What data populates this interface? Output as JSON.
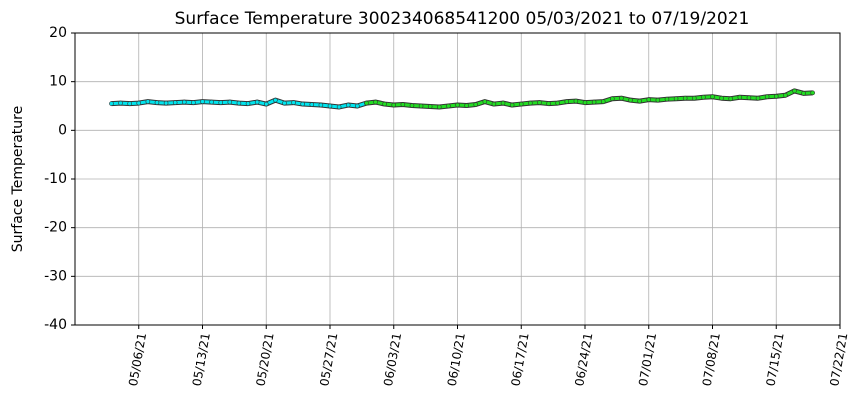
{
  "chart_data": {
    "type": "line",
    "title": "Surface Temperature 300234068541200  05/03/2021 to 07/19/2021",
    "y_label": "Surface Temperature",
    "x": [
      "2021-05-03",
      "2021-05-04",
      "2021-05-05",
      "2021-05-06",
      "2021-05-07",
      "2021-05-08",
      "2021-05-09",
      "2021-05-10",
      "2021-05-11",
      "2021-05-12",
      "2021-05-13",
      "2021-05-14",
      "2021-05-15",
      "2021-05-16",
      "2021-05-17",
      "2021-05-18",
      "2021-05-19",
      "2021-05-20",
      "2021-05-21",
      "2021-05-22",
      "2021-05-23",
      "2021-05-24",
      "2021-05-25",
      "2021-05-26",
      "2021-05-27",
      "2021-05-28",
      "2021-05-29",
      "2021-05-30",
      "2021-05-31",
      "2021-06-01",
      "2021-06-02",
      "2021-06-03",
      "2021-06-04",
      "2021-06-05",
      "2021-06-06",
      "2021-06-07",
      "2021-06-08",
      "2021-06-09",
      "2021-06-10",
      "2021-06-11",
      "2021-06-12",
      "2021-06-13",
      "2021-06-14",
      "2021-06-15",
      "2021-06-16",
      "2021-06-17",
      "2021-06-18",
      "2021-06-19",
      "2021-06-20",
      "2021-06-21",
      "2021-06-22",
      "2021-06-23",
      "2021-06-24",
      "2021-06-25",
      "2021-06-26",
      "2021-06-27",
      "2021-06-28",
      "2021-06-29",
      "2021-06-30",
      "2021-07-01",
      "2021-07-02",
      "2021-07-03",
      "2021-07-04",
      "2021-07-05",
      "2021-07-06",
      "2021-07-07",
      "2021-07-08",
      "2021-07-09",
      "2021-07-10",
      "2021-07-11",
      "2021-07-12",
      "2021-07-13",
      "2021-07-14",
      "2021-07-15",
      "2021-07-16",
      "2021-07-17",
      "2021-07-18",
      "2021-07-19"
    ],
    "series": [
      {
        "color": "#00e5ee",
        "values": [
          5.5,
          5.6,
          5.5,
          5.6,
          5.9,
          5.7,
          5.6,
          5.7,
          5.8,
          5.7,
          5.9,
          5.8,
          5.7,
          5.8,
          5.6,
          5.5,
          5.8,
          5.4,
          6.2,
          5.6,
          5.7,
          5.4,
          5.3,
          5.2,
          5.0,
          4.8,
          5.2,
          5.0,
          5.6,
          null,
          null,
          null,
          null,
          null,
          null,
          null,
          null,
          null,
          null,
          null,
          null,
          null,
          null,
          null,
          null,
          null,
          null,
          null,
          null,
          null,
          null,
          null,
          null,
          null,
          null,
          null,
          null,
          null,
          null,
          null,
          null,
          null,
          null,
          null,
          null,
          null,
          null,
          null,
          null,
          null,
          null,
          null,
          null,
          null,
          null,
          null,
          null,
          null
        ]
      },
      {
        "color": "#22dd22",
        "values": [
          null,
          null,
          null,
          null,
          null,
          null,
          null,
          null,
          null,
          null,
          null,
          null,
          null,
          null,
          null,
          null,
          null,
          null,
          null,
          null,
          null,
          null,
          null,
          null,
          null,
          null,
          null,
          null,
          5.6,
          5.8,
          5.4,
          5.2,
          5.3,
          5.1,
          5.0,
          4.9,
          4.8,
          5.0,
          5.2,
          5.1,
          5.3,
          5.9,
          5.4,
          5.6,
          5.2,
          5.4,
          5.6,
          5.7,
          5.5,
          5.6,
          5.9,
          6.0,
          5.7,
          5.8,
          5.9,
          6.5,
          6.6,
          6.2,
          6.0,
          6.3,
          6.2,
          6.4,
          6.5,
          6.6,
          6.6,
          6.8,
          6.9,
          6.6,
          6.5,
          6.8,
          6.7,
          6.6,
          6.9,
          7.0,
          7.2,
          8.1,
          7.6,
          7.7
        ]
      }
    ],
    "xlim": [
      "2021-04-29",
      "2021-07-22"
    ],
    "xticks": [
      {
        "value": "2021-05-06",
        "label": "05/06/21"
      },
      {
        "value": "2021-05-13",
        "label": "05/13/21"
      },
      {
        "value": "2021-05-20",
        "label": "05/20/21"
      },
      {
        "value": "2021-05-27",
        "label": "05/27/21"
      },
      {
        "value": "2021-06-03",
        "label": "06/03/21"
      },
      {
        "value": "2021-06-10",
        "label": "06/10/21"
      },
      {
        "value": "2021-06-17",
        "label": "06/17/21"
      },
      {
        "value": "2021-06-24",
        "label": "06/24/21"
      },
      {
        "value": "2021-07-01",
        "label": "07/01/21"
      },
      {
        "value": "2021-07-08",
        "label": "07/08/21"
      },
      {
        "value": "2021-07-15",
        "label": "07/15/21"
      },
      {
        "value": "2021-07-22",
        "label": "07/22/21"
      }
    ],
    "ylim": [
      -40,
      20
    ],
    "yticks": [
      -40,
      -30,
      -20,
      -10,
      0,
      10,
      20
    ],
    "grid": true
  }
}
